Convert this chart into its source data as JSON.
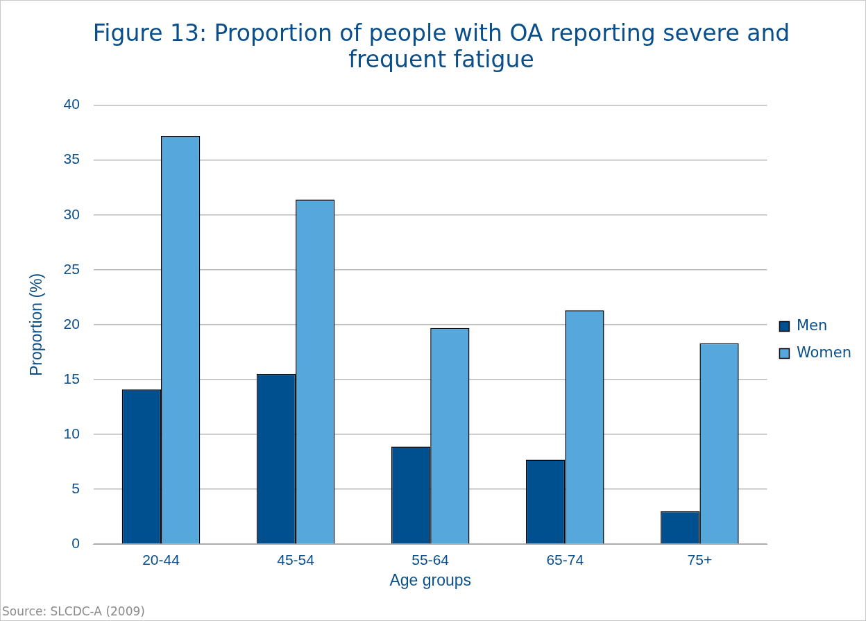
{
  "chart_data": {
    "type": "bar",
    "title": "Figure 13: Proportion of people with OA reporting severe and frequent fatigue",
    "xlabel": "Age groups",
    "ylabel": "Proportion (%)",
    "categories": [
      "20-44",
      "45-54",
      "55-64",
      "65-74",
      "75+"
    ],
    "series": [
      {
        "name": "Men",
        "color": "#004f8e",
        "values": [
          14.1,
          15.5,
          8.9,
          7.7,
          3.0
        ]
      },
      {
        "name": "Women",
        "color": "#55a7dc",
        "values": [
          37.2,
          31.4,
          19.7,
          21.3,
          18.3
        ]
      }
    ],
    "ylim": [
      0,
      40
    ],
    "yticks": [
      0,
      5,
      10,
      15,
      20,
      25,
      30,
      35,
      40
    ],
    "grid": "y",
    "legend": "right",
    "annotations": [
      "Source: SLCDC-A (2009)"
    ]
  }
}
